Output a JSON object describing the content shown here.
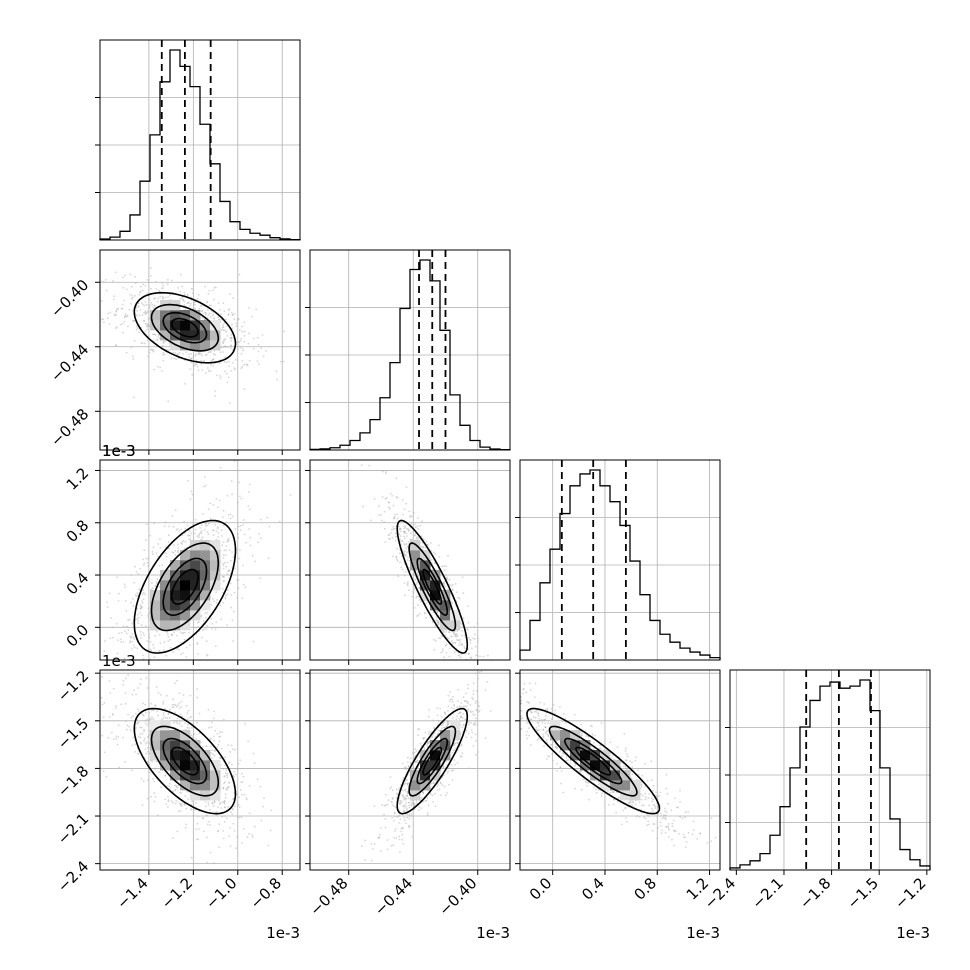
{
  "chart_data": {
    "type": "corner",
    "parameters": [
      {
        "scale_label": "1e-3",
        "range": [
          -1.62,
          -0.72
        ],
        "ticks": [
          -1.4,
          -1.2,
          -1.0,
          -0.8
        ],
        "tick_labels": [
          "−1.4",
          "−1.2",
          "−1.0",
          "−0.8"
        ],
        "quantiles": [
          -1.342,
          -1.238,
          -1.122
        ],
        "hist_bins": [
          -1.62,
          -1.575,
          -1.53,
          -1.485,
          -1.44,
          -1.395,
          -1.35,
          -1.305,
          -1.26,
          -1.215,
          -1.17,
          -1.125,
          -1.08,
          -1.035,
          -0.99,
          -0.945,
          -0.9,
          -0.855,
          -0.81,
          -0.765,
          -0.72
        ],
        "hist_density": [
          0.005,
          0.015,
          0.045,
          0.13,
          0.305,
          0.545,
          0.82,
          0.985,
          0.9,
          0.795,
          0.6,
          0.395,
          0.2,
          0.095,
          0.055,
          0.035,
          0.025,
          0.012,
          0.006,
          0.002
        ]
      },
      {
        "scale_label": "1e-3",
        "range": [
          -0.504,
          -0.38
        ],
        "ticks": [
          -0.48,
          -0.44,
          -0.4
        ],
        "tick_labels": [
          "−0.48",
          "−0.44",
          "−0.40"
        ],
        "quantiles": [
          -0.4364,
          -0.4282,
          -0.42
        ],
        "hist_bins": [
          -0.504,
          -0.4978,
          -0.4916,
          -0.4854,
          -0.4792,
          -0.473,
          -0.4668,
          -0.4606,
          -0.4544,
          -0.4482,
          -0.442,
          -0.4358,
          -0.4296,
          -0.4234,
          -0.4172,
          -0.411,
          -0.4048,
          -0.3986,
          -0.3924,
          -0.3862,
          -0.38
        ],
        "hist_density": [
          0.003,
          0.006,
          0.012,
          0.025,
          0.05,
          0.09,
          0.16,
          0.275,
          0.46,
          0.745,
          0.95,
          1.0,
          0.89,
          0.63,
          0.29,
          0.13,
          0.05,
          0.015,
          0.005,
          0.002
        ]
      },
      {
        "scale_label": "1e-3",
        "range": [
          -0.25,
          1.28
        ],
        "ticks": [
          0.0,
          0.4,
          0.8,
          1.2
        ],
        "tick_labels": [
          "0.0",
          "0.4",
          "0.8",
          "1.2"
        ],
        "quantiles": [
          0.07,
          0.31,
          0.56
        ],
        "hist_bins": [
          -0.25,
          -0.1735,
          -0.097,
          -0.0205,
          0.056,
          0.1325,
          0.209,
          0.2855,
          0.362,
          0.4385,
          0.515,
          0.5915,
          0.668,
          0.7445,
          0.821,
          0.8975,
          0.974,
          1.0505,
          1.127,
          1.2035,
          1.28
        ],
        "hist_density": [
          0.05,
          0.2,
          0.39,
          0.56,
          0.74,
          0.88,
          0.94,
          0.96,
          0.88,
          0.8,
          0.68,
          0.5,
          0.33,
          0.2,
          0.13,
          0.09,
          0.06,
          0.04,
          0.025,
          0.012
        ]
      },
      {
        "scale_label": "1e-3",
        "range": [
          -2.44,
          -1.18
        ],
        "ticks": [
          -2.4,
          -2.1,
          -1.8,
          -1.5,
          -1.2
        ],
        "tick_labels": [
          "−2.4",
          "−2.1",
          "−1.8",
          "−1.5",
          "−1.2"
        ],
        "quantiles": [
          -1.96,
          -1.754,
          -1.552
        ],
        "hist_bins": [
          -2.44,
          -2.377,
          -2.314,
          -2.251,
          -2.188,
          -2.125,
          -2.062,
          -1.999,
          -1.936,
          -1.873,
          -1.81,
          -1.747,
          -1.684,
          -1.621,
          -1.558,
          -1.495,
          -1.432,
          -1.369,
          -1.306,
          -1.243,
          -1.18
        ],
        "hist_density": [
          0.01,
          0.025,
          0.045,
          0.08,
          0.17,
          0.31,
          0.5,
          0.7,
          0.83,
          0.9,
          0.92,
          0.89,
          0.9,
          0.93,
          0.78,
          0.5,
          0.25,
          0.1,
          0.05,
          0.02
        ]
      }
    ],
    "pairs": [
      {
        "xi": 0,
        "yi": 1,
        "mean": [
          -1.238,
          -0.4282
        ],
        "sd": [
          0.11,
          0.0105
        ],
        "rho": -0.45
      },
      {
        "xi": 0,
        "yi": 2,
        "mean": [
          -1.238,
          0.31
        ],
        "sd": [
          0.11,
          0.245
        ],
        "rho": 0.55
      },
      {
        "xi": 1,
        "yi": 2,
        "mean": [
          -0.4282,
          0.31
        ],
        "sd": [
          0.0105,
          0.245
        ],
        "rho": -0.88
      },
      {
        "xi": 0,
        "yi": 3,
        "mean": [
          -1.238,
          -1.754
        ],
        "sd": [
          0.11,
          0.16
        ],
        "rho": -0.62
      },
      {
        "xi": 1,
        "yi": 3,
        "mean": [
          -0.4282,
          -1.754
        ],
        "sd": [
          0.0105,
          0.16
        ],
        "rho": 0.85
      },
      {
        "xi": 2,
        "yi": 3,
        "mean": [
          0.31,
          -1.754
        ],
        "sd": [
          0.245,
          0.16
        ],
        "rho": -0.9
      }
    ],
    "contour_levels_sigma": [
      0.5,
      1.0,
      1.5,
      2.0
    ],
    "grid": true,
    "colors": {
      "line": "#000000",
      "points": "#b4b4b4",
      "grid": "#b0b0b0"
    }
  }
}
